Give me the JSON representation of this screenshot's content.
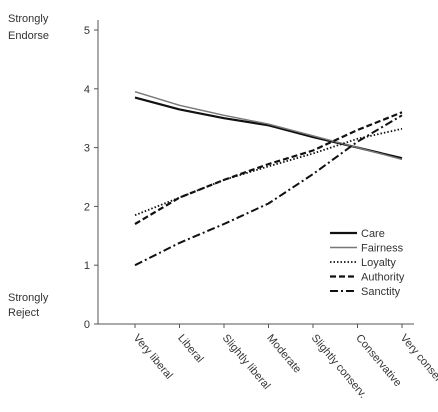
{
  "chart_data": {
    "type": "line",
    "title": "",
    "xlabel": "",
    "ylabel": "",
    "categories": [
      "Very liberal",
      "Liberal",
      "Slightly liberal",
      "Moderate",
      "Slightly conserv.",
      "Conservative",
      "Very conserv."
    ],
    "ylim": [
      0,
      5
    ],
    "yticks": [
      0,
      1,
      2,
      3,
      4,
      5
    ],
    "y_anchor_labels": {
      "top": [
        "Strongly",
        "Endorse"
      ],
      "bottom": [
        "Strongly",
        "Reject"
      ]
    },
    "grid": false,
    "legend_position": "right",
    "series": [
      {
        "name": "Care",
        "values": [
          3.85,
          3.65,
          3.5,
          3.38,
          3.18,
          3.0,
          2.82
        ],
        "color": "#111111",
        "dash": "",
        "width": 2.2
      },
      {
        "name": "Fairness",
        "values": [
          3.95,
          3.72,
          3.55,
          3.4,
          3.2,
          3.0,
          2.8
        ],
        "color": "#777777",
        "dash": "",
        "width": 1.4
      },
      {
        "name": "Loyalty",
        "values": [
          1.85,
          2.15,
          2.45,
          2.68,
          2.9,
          3.15,
          3.32
        ],
        "color": "#111111",
        "dash": "1.5,2",
        "width": 1.8
      },
      {
        "name": "Authority",
        "values": [
          1.7,
          2.15,
          2.45,
          2.72,
          2.95,
          3.3,
          3.6
        ],
        "color": "#111111",
        "dash": "6,3",
        "width": 2.2
      },
      {
        "name": "Sanctity",
        "values": [
          1.0,
          1.38,
          1.7,
          2.05,
          2.55,
          3.1,
          3.55
        ],
        "color": "#111111",
        "dash": "8,3,2,3",
        "width": 2.0
      }
    ]
  }
}
